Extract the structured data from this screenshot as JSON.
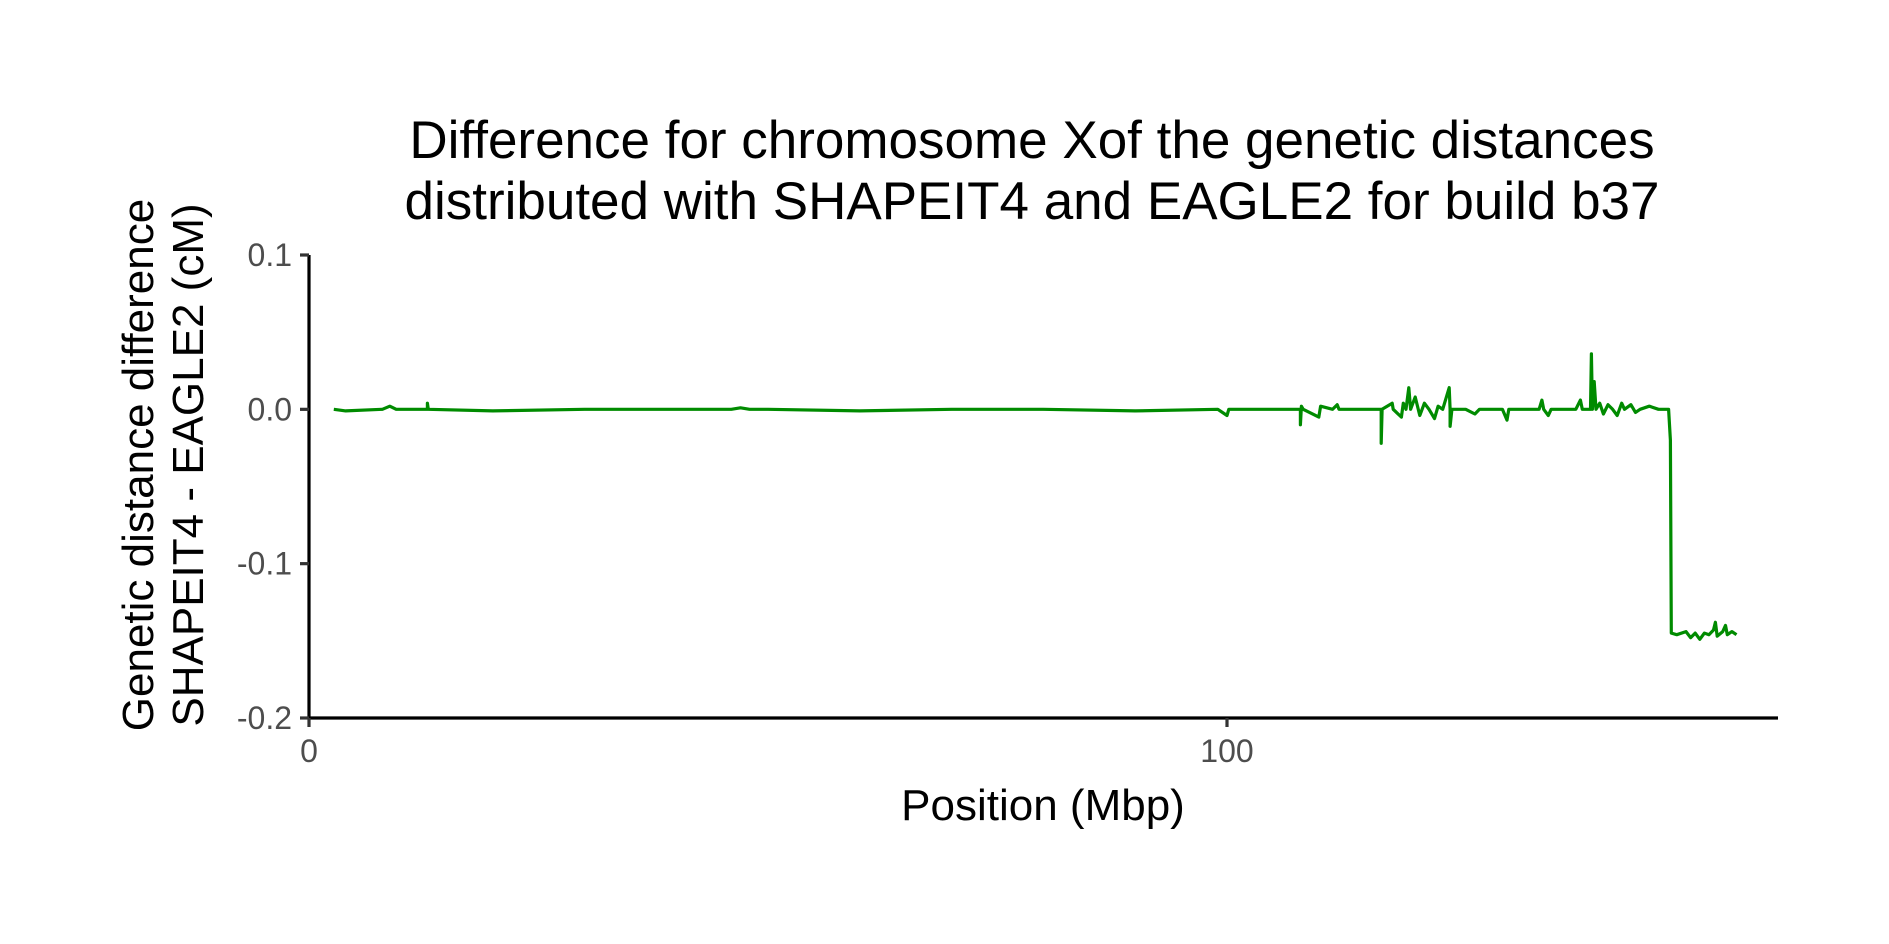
{
  "chart_data": {
    "type": "line",
    "title": [
      "Difference for chromosome Xof the genetic distances",
      "distributed with SHAPEIT4 and EAGLE2 for build b37"
    ],
    "xlabel": "Position (Mbp)",
    "ylabel": [
      "Genetic distance difference",
      "SHAPEIT4 - EAGLE2 (cM)"
    ],
    "xlim": [
      0,
      160
    ],
    "ylim": [
      -0.2,
      0.1
    ],
    "x_ticks": [
      {
        "value": 0,
        "label": "0"
      },
      {
        "value": 100,
        "label": "100"
      }
    ],
    "y_ticks": [
      {
        "value": 0.1,
        "label": "0.1"
      },
      {
        "value": 0.0,
        "label": "0.0"
      },
      {
        "value": -0.1,
        "label": "-0.1"
      },
      {
        "value": -0.2,
        "label": "-0.2"
      }
    ],
    "grid": false,
    "legend": "none",
    "colors": {
      "series": "#008B00",
      "axis": "#000000",
      "tick_label": "#4d4d4d"
    },
    "series": [
      {
        "points": [
          [
            2.7,
            0.0
          ],
          [
            4.0,
            -0.001
          ],
          [
            8.0,
            0.0
          ],
          [
            8.8,
            0.002
          ],
          [
            9.5,
            0.0
          ],
          [
            12.9,
            0.0
          ],
          [
            12.9,
            0.004
          ],
          [
            13.0,
            0.0
          ],
          [
            20.0,
            -0.001
          ],
          [
            30.0,
            0.0
          ],
          [
            40.0,
            0.0
          ],
          [
            46.0,
            0.0
          ],
          [
            47.0,
            0.001
          ],
          [
            48.0,
            0.0
          ],
          [
            50.0,
            0.0
          ],
          [
            60.0,
            -0.001
          ],
          [
            70.0,
            0.0
          ],
          [
            80.0,
            0.0
          ],
          [
            90.0,
            -0.001
          ],
          [
            99.0,
            0.0
          ],
          [
            100.0,
            -0.004
          ],
          [
            100.2,
            0.0
          ],
          [
            108.0,
            0.0
          ],
          [
            108.0,
            -0.01
          ],
          [
            108.1,
            0.002
          ],
          [
            108.3,
            0.0
          ],
          [
            110.0,
            -0.005
          ],
          [
            110.2,
            0.002
          ],
          [
            111.5,
            0.0
          ],
          [
            112.0,
            0.003
          ],
          [
            112.2,
            0.0
          ],
          [
            116.8,
            0.0
          ],
          [
            116.8,
            -0.022
          ],
          [
            116.9,
            0.0
          ],
          [
            118.0,
            0.004
          ],
          [
            118.1,
            0.0
          ],
          [
            119.0,
            -0.005
          ],
          [
            119.2,
            0.004
          ],
          [
            119.5,
            0.0
          ],
          [
            119.8,
            0.014
          ],
          [
            120.0,
            0.0
          ],
          [
            120.5,
            0.008
          ],
          [
            121.0,
            -0.004
          ],
          [
            121.5,
            0.004
          ],
          [
            122.0,
            0.0
          ],
          [
            122.6,
            -0.006
          ],
          [
            123.0,
            0.002
          ],
          [
            123.5,
            0.0
          ],
          [
            124.2,
            0.014
          ],
          [
            124.3,
            0.0
          ],
          [
            124.3,
            -0.011
          ],
          [
            124.5,
            0.0
          ],
          [
            126.0,
            0.0
          ],
          [
            127.0,
            -0.003
          ],
          [
            127.5,
            0.0
          ],
          [
            130.0,
            0.0
          ],
          [
            130.5,
            -0.007
          ],
          [
            130.7,
            0.0
          ],
          [
            134.0,
            0.0
          ],
          [
            134.3,
            0.006
          ],
          [
            134.5,
            0.0
          ],
          [
            135.0,
            -0.004
          ],
          [
            135.3,
            0.0
          ],
          [
            138.0,
            0.0
          ],
          [
            138.5,
            0.006
          ],
          [
            138.7,
            0.0
          ],
          [
            139.6,
            0.0
          ],
          [
            139.7,
            0.036
          ],
          [
            139.8,
            0.0
          ],
          [
            140.0,
            0.018
          ],
          [
            140.2,
            0.0
          ],
          [
            140.6,
            0.004
          ],
          [
            141.0,
            -0.003
          ],
          [
            141.5,
            0.003
          ],
          [
            142.0,
            0.0
          ],
          [
            142.5,
            -0.004
          ],
          [
            143.0,
            0.004
          ],
          [
            143.3,
            0.0
          ],
          [
            144.0,
            0.003
          ],
          [
            144.5,
            -0.002
          ],
          [
            145.0,
            0.0
          ],
          [
            146.0,
            0.002
          ],
          [
            147.0,
            0.0
          ],
          [
            148.1,
            0.0
          ],
          [
            148.3,
            -0.02
          ],
          [
            148.4,
            -0.145
          ],
          [
            149.0,
            -0.146
          ],
          [
            150.0,
            -0.144
          ],
          [
            150.5,
            -0.148
          ],
          [
            151.0,
            -0.145
          ],
          [
            151.5,
            -0.149
          ],
          [
            152.0,
            -0.145
          ],
          [
            152.5,
            -0.146
          ],
          [
            153.0,
            -0.143
          ],
          [
            153.2,
            -0.138
          ],
          [
            153.4,
            -0.147
          ],
          [
            154.0,
            -0.144
          ],
          [
            154.3,
            -0.14
          ],
          [
            154.5,
            -0.146
          ],
          [
            155.0,
            -0.144
          ],
          [
            155.5,
            -0.146
          ]
        ]
      }
    ]
  }
}
